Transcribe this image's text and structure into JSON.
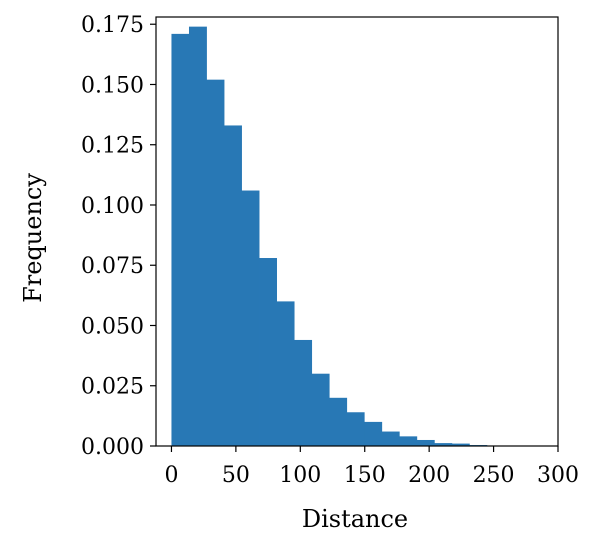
{
  "chart_data": {
    "type": "bar",
    "subtype": "histogram",
    "title": "",
    "xlabel": "Distance",
    "ylabel": "Frequency",
    "xlim": [
      -12,
      300
    ],
    "ylim": [
      0,
      0.178
    ],
    "xticks": [
      0,
      50,
      100,
      150,
      200,
      250,
      300
    ],
    "yticks": [
      0.0,
      0.025,
      0.05,
      0.075,
      0.1,
      0.125,
      0.15,
      0.175
    ],
    "xtick_labels": [
      "0",
      "50",
      "100",
      "150",
      "200",
      "250",
      "300"
    ],
    "ytick_labels": [
      "0.000",
      "0.025",
      "0.050",
      "0.075",
      "0.100",
      "0.125",
      "0.150",
      "0.175"
    ],
    "grid": false,
    "bar_color": "#2878b5",
    "bins": [
      {
        "x0": 0,
        "x1": 13.6,
        "value": 0.171
      },
      {
        "x0": 13.6,
        "x1": 27.2,
        "value": 0.174
      },
      {
        "x0": 27.2,
        "x1": 40.8,
        "value": 0.152
      },
      {
        "x0": 40.8,
        "x1": 54.4,
        "value": 0.133
      },
      {
        "x0": 54.4,
        "x1": 68.0,
        "value": 0.106
      },
      {
        "x0": 68.0,
        "x1": 81.6,
        "value": 0.078
      },
      {
        "x0": 81.6,
        "x1": 95.2,
        "value": 0.06
      },
      {
        "x0": 95.2,
        "x1": 108.8,
        "value": 0.044
      },
      {
        "x0": 108.8,
        "x1": 122.4,
        "value": 0.03
      },
      {
        "x0": 122.4,
        "x1": 136.0,
        "value": 0.02
      },
      {
        "x0": 136.0,
        "x1": 149.6,
        "value": 0.014
      },
      {
        "x0": 149.6,
        "x1": 163.2,
        "value": 0.01
      },
      {
        "x0": 163.2,
        "x1": 176.8,
        "value": 0.006
      },
      {
        "x0": 176.8,
        "x1": 190.4,
        "value": 0.004
      },
      {
        "x0": 190.4,
        "x1": 204.0,
        "value": 0.0025
      },
      {
        "x0": 204.0,
        "x1": 217.6,
        "value": 0.0012
      },
      {
        "x0": 217.6,
        "x1": 231.2,
        "value": 0.001
      },
      {
        "x0": 231.2,
        "x1": 244.8,
        "value": 0.0004
      },
      {
        "x0": 244.8,
        "x1": 258.4,
        "value": 0.0002
      },
      {
        "x0": 258.4,
        "x1": 272.0,
        "value": 0.0001
      },
      {
        "x0": 272.0,
        "x1": 285.6,
        "value": 0.0001
      }
    ]
  }
}
